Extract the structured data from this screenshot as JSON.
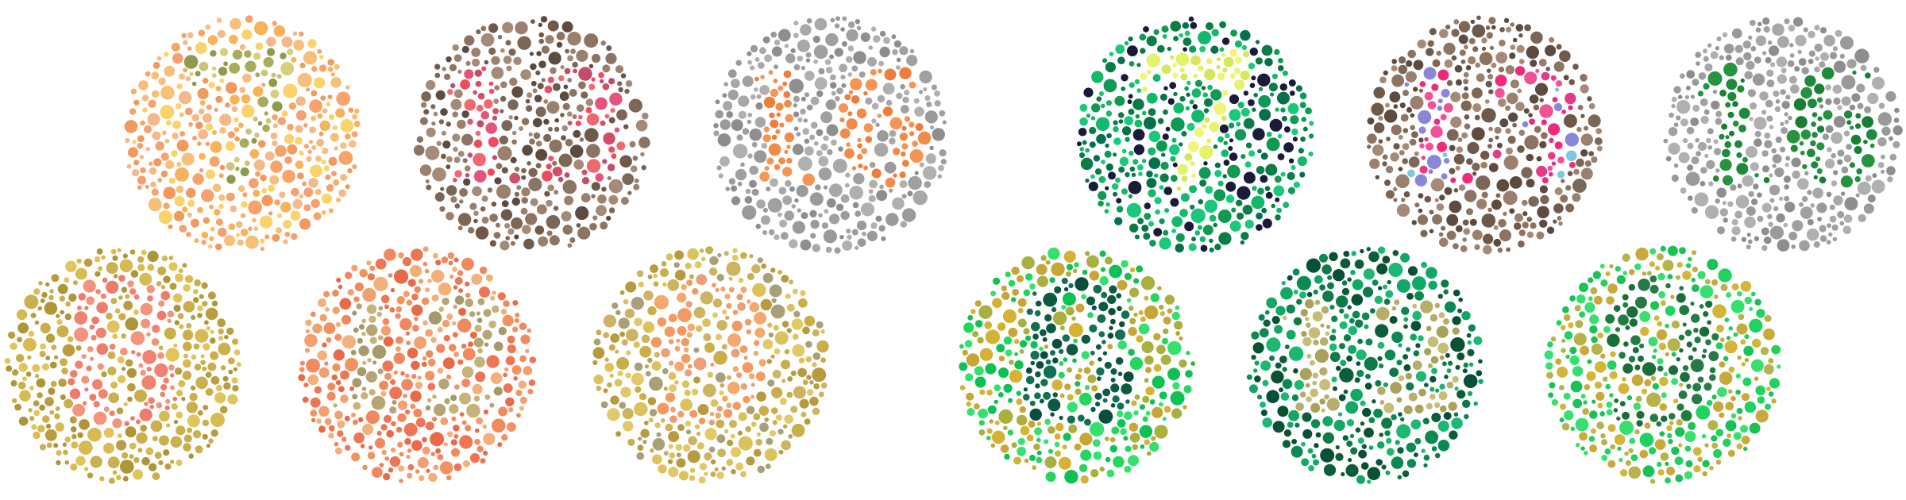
{
  "figure": {
    "background": "#ffffff",
    "plates": [
      {
        "id": "plate-7",
        "digit": "7",
        "bg": [
          "#f7a36a",
          "#f4b98a",
          "#f29a5e",
          "#f7c07a",
          "#f8b25a",
          "#f4a070",
          "#fbd36d"
        ],
        "fg": [
          "#c9c679",
          "#a8ab5a",
          "#8f9a4d",
          "#d6d07c"
        ],
        "digitColorName": "olive"
      },
      {
        "id": "plate-13",
        "digit": "13",
        "bg": [
          "#8d7462",
          "#6e594b",
          "#a58a78",
          "#5e4b3f",
          "#9a806d",
          "#7c6656"
        ],
        "fg": [
          "#e4537a",
          "#d24f6a",
          "#f06870",
          "#c44c68",
          "#ec4d5c"
        ],
        "digitColorName": "pink-red"
      },
      {
        "id": "plate-16",
        "digit": "16",
        "bg": [
          "#a0a0a0",
          "#9a9a9a",
          "#b0b0b0",
          "#8e8e8e",
          "#a8a8a8"
        ],
        "fg": [
          "#f28a4a",
          "#f49556",
          "#ef7e3c"
        ],
        "digitColorName": "orange"
      },
      {
        "id": "plate-8",
        "digit": "8",
        "bg": [
          "#c9ae4a",
          "#d7bb52",
          "#b99e40",
          "#e2c45d",
          "#cbb050",
          "#ad9637"
        ],
        "fg": [
          "#f08270",
          "#f3957c",
          "#ee7b6b"
        ],
        "digitColorName": "salmon"
      },
      {
        "id": "plate-12",
        "digit": "12",
        "bg": [
          "#ee7654",
          "#f08a5e",
          "#f3a070",
          "#e86a48",
          "#f4b07a",
          "#f2925f"
        ],
        "fg": [
          "#b5a474",
          "#a59a6a",
          "#c6b37a"
        ],
        "digitColorName": "khaki"
      },
      {
        "id": "plate-9",
        "digit": "9",
        "bg": [
          "#c9ae4a",
          "#dcc25a",
          "#b79b3e",
          "#e2c866",
          "#a9a07a",
          "#cdb461"
        ],
        "fg": [
          "#f29a62",
          "#eba07a",
          "#f4a86b"
        ],
        "digitColorName": "peach"
      },
      {
        "id": "plate-7-sim",
        "digit": "7",
        "bg": [
          "#0e9a52",
          "#13b86a",
          "#0a7d47",
          "#19c979",
          "#05704a",
          "#1a1a3a"
        ],
        "fg": [
          "#e5f36a",
          "#d6e85a",
          "#f0f576"
        ],
        "digitColorName": "yellow"
      },
      {
        "id": "plate-13-sim",
        "digit": "13",
        "bg": [
          "#8d7462",
          "#6e594b",
          "#a58a78",
          "#5e4b3f",
          "#9a806d",
          "#7c6656"
        ],
        "fg": [
          "#ef2a7a",
          "#e43a88",
          "#7ec8e0",
          "#8a87d8",
          "#f25097"
        ],
        "digitColorName": "magenta-cyan"
      },
      {
        "id": "plate-16-sim",
        "digit": "16",
        "bg": [
          "#a0a0a0",
          "#9a9a9a",
          "#b0b0b0",
          "#8e8e8e",
          "#a8a8a8"
        ],
        "fg": [
          "#1f8a3c",
          "#178032",
          "#26943f"
        ],
        "digitColorName": "green"
      },
      {
        "id": "plate-8-sim",
        "digit": "8",
        "bg": [
          "#d4b234",
          "#25d65c",
          "#0fc152",
          "#c7a636",
          "#34e06e",
          "#a9b040"
        ],
        "fg": [
          "#0c5a44",
          "#127055",
          "#0a4d3c"
        ],
        "digitColorName": "dark-teal"
      },
      {
        "id": "plate-12-sim",
        "digit": "12",
        "bg": [
          "#0c5e3a",
          "#0a8a50",
          "#10a862",
          "#085036",
          "#1bb872",
          "#0e7a48"
        ],
        "fg": [
          "#b7ae6a",
          "#a8a25c",
          "#c5bd78"
        ],
        "digitColorName": "khaki"
      },
      {
        "id": "plate-9-sim",
        "digit": "9",
        "bg": [
          "#d2b63a",
          "#20d260",
          "#37df6e",
          "#c8a93c",
          "#18c255",
          "#b5b44a"
        ],
        "fg": [
          "#1f7d3f",
          "#267a46",
          "#1a6e38"
        ],
        "digitColorName": "green"
      }
    ]
  }
}
